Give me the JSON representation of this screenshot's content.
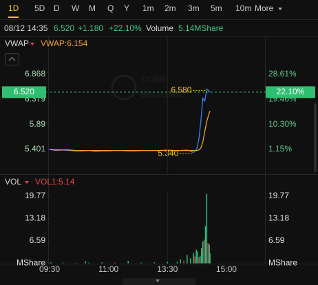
{
  "tabs": [
    "1D",
    "5D",
    "D",
    "W",
    "M",
    "Q",
    "Y",
    "1m",
    "2m",
    "3m",
    "5m",
    "10m",
    "More"
  ],
  "active_tab": "1D",
  "quote": {
    "time": "08/12 14:35",
    "price": "6.520",
    "change": "+1.180",
    "change_pct": "+22.10%",
    "volume_label": "Volume",
    "volume": "5.14MShare"
  },
  "watermark": [
    "TIGER",
    "BROKERS"
  ],
  "chart_data": [
    {
      "type": "line",
      "indicator": "VWAP",
      "indicator_text": "VWAP:6.154",
      "x": [
        0,
        10,
        20,
        30,
        40,
        50,
        60,
        70,
        80,
        90,
        100,
        110,
        120,
        130,
        140,
        150,
        160,
        170,
        180,
        190,
        200,
        210,
        220,
        225,
        228,
        231,
        234,
        237,
        240,
        243,
        245
      ],
      "series": [
        {
          "color": "#3b82f6",
          "values": [
            5.4,
            5.38,
            5.39,
            5.38,
            5.37,
            5.37,
            5.38,
            5.36,
            5.37,
            5.37,
            5.38,
            5.38,
            5.37,
            5.37,
            5.38,
            5.38,
            5.38,
            5.38,
            5.39,
            5.38,
            5.38,
            5.39,
            5.34,
            5.42,
            5.6,
            5.95,
            6.4,
            6.35,
            6.58,
            6.55,
            6.52
          ]
        },
        {
          "name": "VWAP",
          "color": "#f0a030",
          "values": [
            5.4,
            5.39,
            5.39,
            5.39,
            5.38,
            5.38,
            5.38,
            5.38,
            5.38,
            5.38,
            5.38,
            5.38,
            5.38,
            5.38,
            5.38,
            5.38,
            5.38,
            5.38,
            5.38,
            5.38,
            5.38,
            5.38,
            5.38,
            5.38,
            5.39,
            5.43,
            5.55,
            5.75,
            5.95,
            6.08,
            6.154
          ]
        }
      ],
      "xlim": [
        0,
        330
      ],
      "ylim": [
        4.93,
        7.622
      ],
      "yticks": [
        6.868,
        6.379,
        5.89,
        5.401
      ],
      "y2lim": [
        -7.678,
        42.73
      ],
      "y2ticks": [
        {
          "value": 28.61,
          "label": "28.61%"
        },
        {
          "value": 19.46,
          "label": "19.46%"
        },
        {
          "value": 10.3,
          "label": "10.30%"
        },
        {
          "value": 1.15,
          "label": "1.15%"
        }
      ],
      "current": {
        "value": 6.52,
        "label": "6.520"
      },
      "current_pct": {
        "value": 22.1,
        "label": "22.10%"
      },
      "annotations": [
        {
          "text": "6.580",
          "x": 240,
          "value": 6.58
        },
        {
          "text": "5.340",
          "x": 220,
          "value": 5.34
        }
      ]
    },
    {
      "type": "bar",
      "indicator": "VOL",
      "indicator_text": "VOL1:5.14",
      "x": [
        2,
        20,
        40,
        55,
        60,
        80,
        100,
        120,
        140,
        160,
        180,
        195,
        200,
        205,
        210,
        215,
        220,
        222,
        224,
        226,
        228,
        230,
        232,
        234,
        236,
        238,
        240,
        242,
        244,
        245
      ],
      "values": [
        0.3,
        0.2,
        0.15,
        0.6,
        0.2,
        0.3,
        0.2,
        0.7,
        0.2,
        0.3,
        0.4,
        0.5,
        1.2,
        0.8,
        2.5,
        1.5,
        3.0,
        2.0,
        4.0,
        3.5,
        1.8,
        2.2,
        4.5,
        6.5,
        7.0,
        11.0,
        20.5,
        6.0,
        5.5,
        3.0
      ],
      "colors": [
        "#26c281",
        "#26c281",
        "#e04848",
        "#26c281",
        "#26c281",
        "#26c281",
        "#e04848",
        "#26c281",
        "#26c281",
        "#26c281",
        "#26c281",
        "#26c281",
        "#26c281",
        "#e04848",
        "#26c281",
        "#26c281",
        "#26c281",
        "#e04848",
        "#26c281",
        "#26c281",
        "#e04848",
        "#26c281",
        "#26c281",
        "#26c281",
        "#e04848",
        "#26c281",
        "#26c281",
        "#e04848",
        "#26c281",
        "#26c281"
      ],
      "xlim": [
        0,
        330
      ],
      "xticks": [
        {
          "value": 0,
          "label": "09:30"
        },
        {
          "value": 90,
          "label": "11:00"
        },
        {
          "value": 180,
          "label": "13:30"
        },
        {
          "value": 270,
          "label": "15:00"
        }
      ],
      "ylim": [
        0,
        21.8
      ],
      "yticks": [
        19.77,
        13.18,
        6.59,
        {
          "value": 0,
          "label": "MShare"
        }
      ]
    }
  ]
}
